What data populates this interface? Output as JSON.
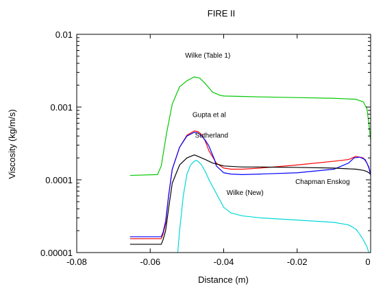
{
  "chart_data": {
    "type": "line",
    "title": "FIRE II",
    "xlabel": "Distance (m)",
    "ylabel": "Viscosity  (kg/m/s)",
    "xlim": [
      -0.08,
      0
    ],
    "ylim": [
      1e-05,
      0.01
    ],
    "yscale": "log",
    "grid": false,
    "x_ticks": [
      -0.08,
      -0.06,
      -0.04,
      -0.02,
      0
    ],
    "x_tick_labels": [
      "-0.08",
      "-0.06",
      "-0.04",
      "-0.02",
      "0"
    ],
    "y_ticks": [
      1e-05,
      0.0001,
      0.001,
      0.01
    ],
    "y_tick_labels": [
      "0.00001",
      "0.0001",
      "0.001",
      "0.01"
    ],
    "annotations": [
      {
        "text": "Wilke (Table 1)",
        "x": -0.0505,
        "y": 0.0048
      },
      {
        "text": "Gupta et al",
        "x": -0.0485,
        "y": 0.00073
      },
      {
        "text": "Sutherland",
        "x": -0.0478,
        "y": 0.00038
      },
      {
        "text": "Chapman Enskog",
        "x": -0.0205,
        "y": 8.8e-05
      },
      {
        "text": "Wilke (New)",
        "x": -0.0392,
        "y": 6.2e-05
      }
    ],
    "series": [
      {
        "color": "#00c800",
        "x": [
          -0.0655,
          -0.058,
          -0.057,
          -0.0555,
          -0.054,
          -0.052,
          -0.05,
          -0.048,
          -0.0465,
          -0.045,
          -0.043,
          -0.041,
          -0.04,
          -0.035,
          -0.03,
          -0.02,
          -0.01,
          -0.004,
          -0.002,
          -0.001,
          -0.0005,
          0
        ],
        "y": [
          0.000115,
          0.000118,
          0.000155,
          0.00045,
          0.0011,
          0.0019,
          0.0023,
          0.0026,
          0.0025,
          0.0021,
          0.0016,
          0.00145,
          0.00142,
          0.0014,
          0.00138,
          0.00135,
          0.00132,
          0.00128,
          0.00118,
          0.00095,
          0.0006,
          0.00035
        ]
      },
      {
        "color": "#ff0000",
        "x": [
          -0.0655,
          -0.057,
          -0.0565,
          -0.0558,
          -0.055,
          -0.054,
          -0.052,
          -0.05,
          -0.048,
          -0.047,
          -0.046,
          -0.045,
          -0.044,
          -0.042,
          -0.04,
          -0.038,
          -0.035,
          -0.03,
          -0.02,
          -0.01,
          -0.006,
          -0.004,
          -0.002,
          -0.001,
          0
        ],
        "y": [
          1.55e-05,
          1.55e-05,
          1.8e-05,
          2.5e-05,
          6e-05,
          0.00014,
          0.00028,
          0.00041,
          0.00047,
          0.00046,
          0.00042,
          0.00034,
          0.00025,
          0.00017,
          0.000145,
          0.00014,
          0.00014,
          0.000145,
          0.00016,
          0.00018,
          0.00019,
          0.00021,
          0.0002,
          0.00017,
          0.000125
        ]
      },
      {
        "color": "#0000ff",
        "x": [
          -0.0655,
          -0.057,
          -0.0565,
          -0.0558,
          -0.055,
          -0.054,
          -0.052,
          -0.05,
          -0.048,
          -0.047,
          -0.046,
          -0.045,
          -0.044,
          -0.0425,
          -0.042,
          -0.04,
          -0.038,
          -0.035,
          -0.03,
          -0.02,
          -0.01,
          -0.006,
          -0.0045,
          -0.003,
          -0.0015,
          -0.0005,
          0
        ],
        "y": [
          1.65e-05,
          1.65e-05,
          1.9e-05,
          2.7e-05,
          6e-05,
          0.00014,
          0.00028,
          0.0004,
          0.00045,
          0.00044,
          0.0004,
          0.00035,
          0.00029,
          0.00019,
          0.000155,
          0.000125,
          0.00012,
          0.000118,
          0.00012,
          0.000125,
          0.00014,
          0.00017,
          0.0002,
          0.000205,
          0.00019,
          0.00015,
          0.000115
        ]
      },
      {
        "color": "#000000",
        "x": [
          -0.0655,
          -0.057,
          -0.0565,
          -0.0558,
          -0.055,
          -0.054,
          -0.052,
          -0.05,
          -0.048,
          -0.047,
          -0.045,
          -0.043,
          -0.041,
          -0.04,
          -0.035,
          -0.03,
          -0.02,
          -0.01,
          -0.004,
          -0.002,
          -0.001,
          0
        ],
        "y": [
          1.3e-05,
          1.3e-05,
          1.5e-05,
          2e-05,
          4e-05,
          9e-05,
          0.00016,
          0.0002,
          0.00022,
          0.00021,
          0.00019,
          0.00017,
          0.00016,
          0.000155,
          0.00015,
          0.00015,
          0.000148,
          0.000145,
          0.00014,
          0.000135,
          0.00013,
          0.00012
        ]
      },
      {
        "color": "#00d8d8",
        "x": [
          -0.0525,
          -0.052,
          -0.051,
          -0.05,
          -0.049,
          -0.048,
          -0.0475,
          -0.047,
          -0.046,
          -0.045,
          -0.044,
          -0.042,
          -0.04,
          -0.038,
          -0.035,
          -0.03,
          -0.02,
          -0.01,
          -0.006,
          -0.004,
          -0.003,
          -0.002,
          -0.001,
          -0.0005
        ],
        "y": [
          1e-05,
          2e-05,
          6e-05,
          0.00012,
          0.00016,
          0.00018,
          0.000185,
          0.00018,
          0.00016,
          0.00013,
          0.0001,
          6.5e-05,
          4.2e-05,
          3.5e-05,
          3.2e-05,
          3e-05,
          2.8e-05,
          2.6e-05,
          2.4e-05,
          2.1e-05,
          1.8e-05,
          1.5e-05,
          1.2e-05,
          1e-05
        ]
      }
    ]
  }
}
